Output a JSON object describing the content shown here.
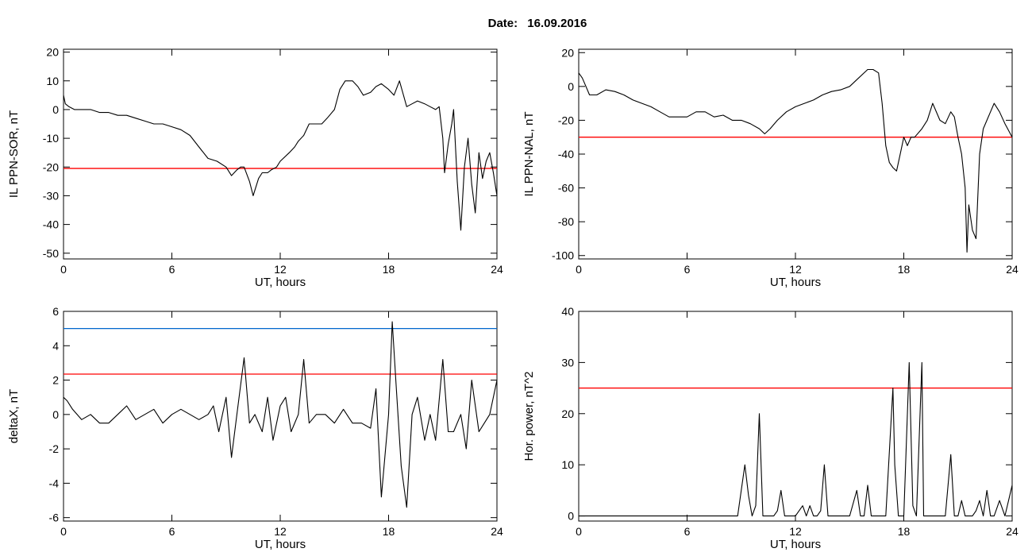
{
  "header": {
    "date_label": "Date:",
    "date_value": "16.09.2016"
  },
  "colors": {
    "trace": "#000000",
    "threshold": "#ff0000",
    "upper_threshold": "#0066cc",
    "highlight": "#0066cc",
    "marker_red": "#ff0000",
    "marker_green": "#00cc00",
    "marker_blue": "#0066cc"
  },
  "chart_data": [
    {
      "type": "line",
      "id": "ppn_sor",
      "xlabel": "UT, hours",
      "ylabel": "IL PPN-SOR, nT",
      "xlim": [
        0,
        24
      ],
      "ylim": [
        -52,
        21
      ],
      "xticks": [
        0,
        6,
        12,
        18,
        24
      ],
      "yticks": [
        20,
        10,
        0,
        -10,
        -20,
        -30,
        -40,
        -50
      ],
      "thresholds": [
        {
          "y": -20.5,
          "color": "#ff0000"
        }
      ],
      "series": [
        {
          "x": [
            0,
            0.1,
            0.3,
            0.6,
            1,
            1.5,
            2,
            2.5,
            3,
            3.5,
            4,
            4.5,
            5,
            5.5,
            6,
            6.5,
            7,
            7.5,
            8,
            8.5,
            9,
            9.3,
            9.6,
            9.8,
            10,
            10.3,
            10.5,
            10.8,
            11,
            11.3,
            11.5,
            11.8,
            12,
            12.5,
            12.8,
            13,
            13.3,
            13.6,
            14,
            14.3,
            14.6,
            15,
            15.3,
            15.6,
            16,
            16.3,
            16.6,
            17,
            17.3,
            17.6,
            18,
            18.3,
            18.6,
            19,
            19.3,
            19.6,
            20,
            20.3,
            20.6,
            20.8,
            21,
            21.1,
            21.3,
            21.5,
            21.6,
            21.8,
            22,
            22.2,
            22.4,
            22.6,
            22.8,
            23,
            23.2,
            23.4,
            23.6,
            23.8,
            24
          ],
          "y": [
            5,
            2,
            1,
            0,
            0,
            0,
            -1,
            -1,
            -2,
            -2,
            -3,
            -4,
            -5,
            -5,
            -6,
            -7,
            -9,
            -13,
            -17,
            -18,
            -20,
            -23,
            -21,
            -20,
            -20,
            -25,
            -30,
            -24,
            -22,
            -22,
            -21,
            -20,
            -18,
            -15,
            -13,
            -11,
            -9,
            -5,
            -5,
            -5,
            -3,
            0,
            7,
            10,
            10,
            8,
            5,
            6,
            8,
            9,
            7,
            5,
            10,
            1,
            2,
            3,
            2,
            1,
            0,
            1,
            -10,
            -22,
            -12,
            -5,
            0,
            -25,
            -42,
            -20,
            -10,
            -26,
            -36,
            -15,
            -24,
            -18,
            -15,
            -22,
            -30
          ]
        }
      ]
    },
    {
      "type": "line",
      "id": "ppn_nal",
      "xlabel": "UT, hours",
      "ylabel": "IL PPN-NAL, nT",
      "xlim": [
        0,
        24
      ],
      "ylim": [
        -102,
        22
      ],
      "xticks": [
        0,
        6,
        12,
        18,
        24
      ],
      "yticks": [
        20,
        0,
        -20,
        -40,
        -60,
        -80,
        -100
      ],
      "thresholds": [
        {
          "y": -30,
          "color": "#ff0000"
        }
      ],
      "series": [
        {
          "x": [
            0,
            0.2,
            0.4,
            0.6,
            1,
            1.5,
            2,
            2.5,
            3,
            3.5,
            4,
            4.5,
            5,
            5.5,
            6,
            6.5,
            7,
            7.5,
            8,
            8.5,
            9,
            9.5,
            10,
            10.3,
            10.6,
            11,
            11.5,
            12,
            12.5,
            13,
            13.5,
            14,
            14.5,
            15,
            15.5,
            16,
            16.3,
            16.6,
            16.8,
            17,
            17.2,
            17.4,
            17.6,
            17.8,
            18,
            18.2,
            18.4,
            18.6,
            19,
            19.3,
            19.6,
            20,
            20.3,
            20.6,
            20.8,
            21,
            21.2,
            21.4,
            21.5,
            21.6,
            21.8,
            22,
            22.2,
            22.4,
            22.6,
            22.8,
            23,
            23.3,
            23.6,
            24
          ],
          "y": [
            8,
            5,
            0,
            -5,
            -5,
            -2,
            -3,
            -5,
            -8,
            -10,
            -12,
            -15,
            -18,
            -18,
            -18,
            -15,
            -15,
            -18,
            -17,
            -20,
            -20,
            -22,
            -25,
            -28,
            -25,
            -20,
            -15,
            -12,
            -10,
            -8,
            -5,
            -3,
            -2,
            0,
            5,
            10,
            10,
            8,
            -10,
            -35,
            -45,
            -48,
            -50,
            -40,
            -30,
            -35,
            -30,
            -30,
            -25,
            -20,
            -10,
            -20,
            -22,
            -15,
            -18,
            -30,
            -40,
            -60,
            -98,
            -70,
            -85,
            -90,
            -40,
            -25,
            -20,
            -15,
            -10,
            -15,
            -22,
            -30
          ]
        }
      ]
    },
    {
      "type": "line",
      "id": "deltax",
      "xlabel": "UT, hours",
      "ylabel": "deltaX, nT",
      "xlim": [
        0,
        24
      ],
      "ylim": [
        -6.2,
        6
      ],
      "xticks": [
        0,
        6,
        12,
        18,
        24
      ],
      "yticks": [
        6,
        4,
        2,
        0,
        -2,
        -4,
        -6
      ],
      "thresholds": [
        {
          "y": 5,
          "color": "#0066cc"
        },
        {
          "y": 2.35,
          "color": "#ff0000"
        }
      ],
      "series": [
        {
          "x": [
            0,
            0.2,
            0.5,
            1,
            1.5,
            2,
            2.5,
            3,
            3.5,
            4,
            4.5,
            5,
            5.5,
            6,
            6.5,
            7,
            7.5,
            8,
            8.3,
            8.6,
            9,
            9.3,
            9.6,
            10,
            10.3,
            10.6,
            11,
            11.3,
            11.6,
            12,
            12.3,
            12.6,
            13,
            13.3,
            13.6,
            14,
            14.5,
            15,
            15.5,
            16,
            16.5,
            17,
            17.3,
            17.6,
            18,
            18.2,
            18.4,
            18.7,
            19,
            19.3,
            19.6,
            20,
            20.3,
            20.6,
            21,
            21.3,
            21.6,
            22,
            22.3,
            22.6,
            23,
            23.3,
            23.6,
            24
          ],
          "y": [
            1,
            0.8,
            0.3,
            -0.3,
            0,
            -0.5,
            -0.5,
            0,
            0.5,
            -0.3,
            0,
            0.3,
            -0.5,
            0,
            0.3,
            0,
            -0.3,
            0,
            0.5,
            -1,
            1,
            -2.5,
            0,
            3.3,
            -0.5,
            0,
            -1,
            1,
            -1.5,
            0.5,
            1,
            -1,
            0,
            3.2,
            -0.5,
            0,
            0,
            -0.5,
            0.3,
            -0.5,
            -0.5,
            -0.8,
            1.5,
            -4.8,
            0,
            5.4,
            2,
            -3,
            -5.4,
            0,
            1,
            -1.5,
            0,
            -1.5,
            3.2,
            -1,
            -1,
            0,
            -2,
            2,
            -1,
            -0.5,
            0,
            2
          ]
        }
      ]
    },
    {
      "type": "line",
      "id": "hor_power",
      "xlabel": "UT, hours",
      "ylabel": "Hor. power, nT^2",
      "xlim": [
        0,
        24
      ],
      "ylim": [
        -1,
        40
      ],
      "xticks": [
        0,
        6,
        12,
        18,
        24
      ],
      "yticks": [
        40,
        30,
        20,
        10,
        0
      ],
      "thresholds": [
        {
          "y": 25,
          "color": "#ff0000"
        }
      ],
      "series": [
        {
          "x": [
            0,
            2,
            4,
            6,
            7,
            8,
            8.8,
            9.2,
            9.4,
            9.6,
            9.8,
            10,
            10.2,
            10.4,
            10.8,
            11,
            11.2,
            11.4,
            11.6,
            12,
            12.4,
            12.6,
            12.8,
            13,
            13.2,
            13.4,
            13.6,
            13.8,
            14,
            15,
            15.4,
            15.6,
            15.8,
            16,
            16.2,
            16.4,
            17,
            17.4,
            17.5,
            17.7,
            18,
            18.3,
            18.5,
            18.7,
            19,
            19.1,
            19.3,
            19.6,
            20,
            20.3,
            20.6,
            20.8,
            21,
            21.2,
            21.4,
            21.6,
            21.8,
            22,
            22.2,
            22.4,
            22.6,
            22.8,
            23,
            23.3,
            23.6,
            24
          ],
          "y": [
            0,
            0,
            0,
            0,
            0,
            0,
            0,
            10,
            4,
            0,
            2,
            20,
            0,
            0,
            0,
            1,
            5,
            0,
            0,
            0,
            2,
            0,
            2,
            0,
            0,
            1,
            10,
            0,
            0,
            0,
            5,
            0,
            0,
            6,
            0,
            0,
            0,
            25,
            10,
            0,
            0,
            30,
            2,
            0,
            30,
            0,
            0,
            0,
            0,
            0,
            12,
            0,
            0,
            3,
            0,
            0,
            0,
            1,
            3,
            0,
            5,
            0,
            0,
            3,
            0,
            6
          ]
        }
      ]
    }
  ]
}
